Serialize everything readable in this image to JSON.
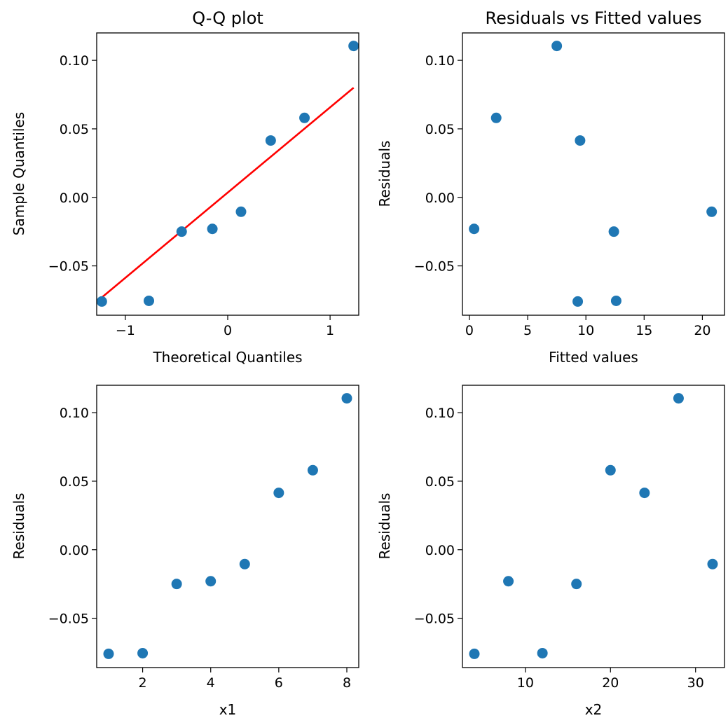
{
  "chart_data": [
    {
      "type": "scatter",
      "title": "Q-Q plot",
      "xlabel": "Theoretical Quantiles",
      "ylabel": "Sample Quantiles",
      "xlim": [
        -1.28,
        1.28
      ],
      "ylim": [
        -0.086,
        0.12
      ],
      "xticks": [
        -1,
        0,
        1
      ],
      "xtick_labels": [
        "−1",
        "0",
        "1"
      ],
      "yticks": [
        -0.05,
        0.0,
        0.05,
        0.1
      ],
      "ytick_labels": [
        "−0.05",
        "0.00",
        "0.05",
        "0.10"
      ],
      "grid": false,
      "points": [
        {
          "x": -1.23,
          "y": -0.076
        },
        {
          "x": -0.77,
          "y": -0.0755
        },
        {
          "x": -0.45,
          "y": -0.025
        },
        {
          "x": -0.15,
          "y": -0.023
        },
        {
          "x": 0.13,
          "y": -0.0105
        },
        {
          "x": 0.42,
          "y": 0.0415
        },
        {
          "x": 0.75,
          "y": 0.058
        },
        {
          "x": 1.23,
          "y": 0.1105
        }
      ],
      "reference_line": {
        "x": [
          -1.23,
          1.23
        ],
        "y": [
          -0.073,
          0.08
        ],
        "color": "#ff0000"
      },
      "marker_color": "#1f77b4"
    },
    {
      "type": "scatter",
      "title": "Residuals vs Fitted values",
      "xlabel": "Fitted values",
      "ylabel": "Residuals",
      "xlim": [
        -0.6,
        21.9
      ],
      "ylim": [
        -0.086,
        0.12
      ],
      "xticks": [
        0,
        5,
        10,
        15,
        20
      ],
      "xtick_labels": [
        "0",
        "5",
        "10",
        "15",
        "20"
      ],
      "yticks": [
        -0.05,
        0.0,
        0.05,
        0.1
      ],
      "ytick_labels": [
        "−0.05",
        "0.00",
        "0.05",
        "0.10"
      ],
      "grid": false,
      "points": [
        {
          "x": 0.4,
          "y": -0.023
        },
        {
          "x": 2.3,
          "y": 0.058
        },
        {
          "x": 7.5,
          "y": 0.1105
        },
        {
          "x": 9.3,
          "y": -0.076
        },
        {
          "x": 9.5,
          "y": 0.0415
        },
        {
          "x": 12.4,
          "y": -0.025
        },
        {
          "x": 12.6,
          "y": -0.0755
        },
        {
          "x": 20.8,
          "y": -0.0105
        }
      ],
      "marker_color": "#1f77b4"
    },
    {
      "type": "scatter",
      "title": "",
      "xlabel": "x1",
      "ylabel": "Residuals",
      "xlim": [
        0.65,
        8.35
      ],
      "ylim": [
        -0.086,
        0.12
      ],
      "xticks": [
        2,
        4,
        6,
        8
      ],
      "xtick_labels": [
        "2",
        "4",
        "6",
        "8"
      ],
      "yticks": [
        -0.05,
        0.0,
        0.05,
        0.1
      ],
      "ytick_labels": [
        "−0.05",
        "0.00",
        "0.05",
        "0.10"
      ],
      "grid": false,
      "points": [
        {
          "x": 1,
          "y": -0.076
        },
        {
          "x": 2,
          "y": -0.0755
        },
        {
          "x": 3,
          "y": -0.025
        },
        {
          "x": 4,
          "y": -0.023
        },
        {
          "x": 5,
          "y": -0.0105
        },
        {
          "x": 6,
          "y": 0.0415
        },
        {
          "x": 7,
          "y": 0.058
        },
        {
          "x": 8,
          "y": 0.1105
        }
      ],
      "marker_color": "#1f77b4"
    },
    {
      "type": "scatter",
      "title": "",
      "xlabel": "x2",
      "ylabel": "Residuals",
      "xlim": [
        2.6,
        33.4
      ],
      "ylim": [
        -0.086,
        0.12
      ],
      "xticks": [
        10,
        20,
        30
      ],
      "xtick_labels": [
        "10",
        "20",
        "30"
      ],
      "yticks": [
        -0.05,
        0.0,
        0.05,
        0.1
      ],
      "ytick_labels": [
        "−0.05",
        "0.00",
        "0.05",
        "0.10"
      ],
      "grid": false,
      "points": [
        {
          "x": 4,
          "y": -0.076
        },
        {
          "x": 8,
          "y": -0.023
        },
        {
          "x": 12,
          "y": -0.0755
        },
        {
          "x": 16,
          "y": -0.025
        },
        {
          "x": 20,
          "y": 0.058
        },
        {
          "x": 24,
          "y": 0.0415
        },
        {
          "x": 28,
          "y": 0.1105
        },
        {
          "x": 32,
          "y": -0.0105
        }
      ],
      "marker_color": "#1f77b4"
    }
  ]
}
